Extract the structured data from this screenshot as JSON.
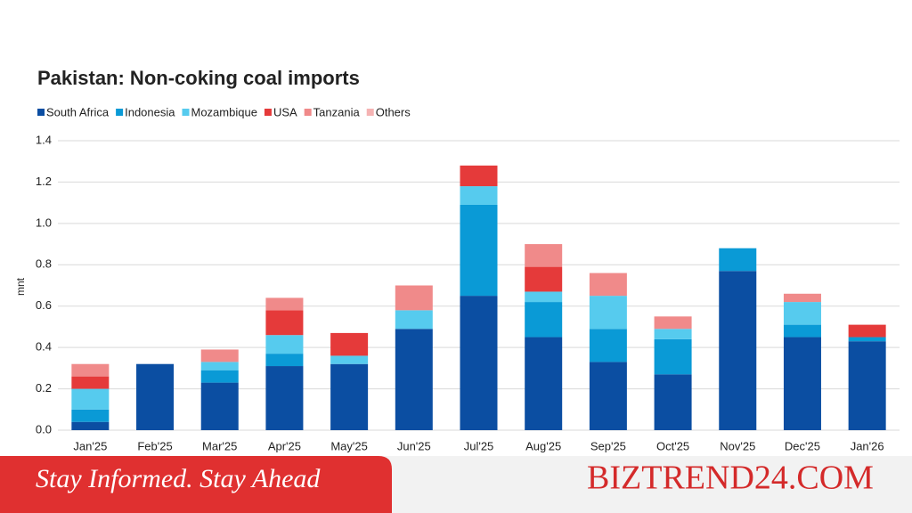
{
  "chart_data": {
    "type": "stacked_bar",
    "title": "Pakistan: Non-coking coal imports",
    "y_label": "mnt",
    "categories": [
      "Jan'25",
      "Feb'25",
      "Mar'25",
      "Apr'25",
      "May'25",
      "Jun'25",
      "Jul'25",
      "Aug'25",
      "Sep'25",
      "Oct'25",
      "Nov'25",
      "Dec'25",
      "Jan'26"
    ],
    "series": [
      {
        "name": "South Africa",
        "color": "#0b4ea2",
        "values": [
          0.04,
          0.32,
          0.23,
          0.31,
          0.32,
          0.49,
          0.65,
          0.45,
          0.33,
          0.27,
          0.77,
          0.45,
          0.43
        ]
      },
      {
        "name": "Indonesia",
        "color": "#0a9ad6",
        "values": [
          0.06,
          0,
          0.06,
          0.06,
          0,
          0,
          0.44,
          0.17,
          0.16,
          0.17,
          0.11,
          0.06,
          0.02
        ]
      },
      {
        "name": "Mozambique",
        "color": "#56cbee",
        "values": [
          0.1,
          0,
          0.04,
          0.09,
          0.04,
          0.09,
          0.09,
          0.05,
          0.16,
          0.05,
          0,
          0.11,
          0
        ]
      },
      {
        "name": "USA",
        "color": "#e53a3a",
        "values": [
          0.06,
          0,
          0,
          0.12,
          0.11,
          0,
          0.1,
          0.12,
          0,
          0,
          0,
          0,
          0.06
        ]
      },
      {
        "name": "Tanzania",
        "color": "#f08a8a",
        "values": [
          0.06,
          0,
          0.06,
          0.06,
          0,
          0.12,
          0,
          0.11,
          0.11,
          0.06,
          0,
          0.04,
          0
        ]
      },
      {
        "name": "Others",
        "color": "#f5b3b3",
        "values": [
          0,
          0,
          0,
          0,
          0,
          0,
          0,
          0,
          0,
          0,
          0,
          0,
          0
        ]
      }
    ],
    "ylim": [
      0,
      1.4
    ],
    "yticks": [
      {
        "value": 0,
        "label": "0.0"
      },
      {
        "value": 0.2,
        "label": "0.2"
      },
      {
        "value": 0.4,
        "label": "0.4"
      },
      {
        "value": 0.6,
        "label": "0.6"
      },
      {
        "value": 0.8,
        "label": "0.8"
      },
      {
        "value": 1.0,
        "label": "1.0"
      },
      {
        "value": 1.2,
        "label": "1.2"
      },
      {
        "value": 1.4,
        "label": "1.4"
      }
    ],
    "grid": true
  },
  "banner": {
    "tagline": "Stay Informed. Stay Ahead",
    "brand": "BIZTREND24.COM"
  }
}
